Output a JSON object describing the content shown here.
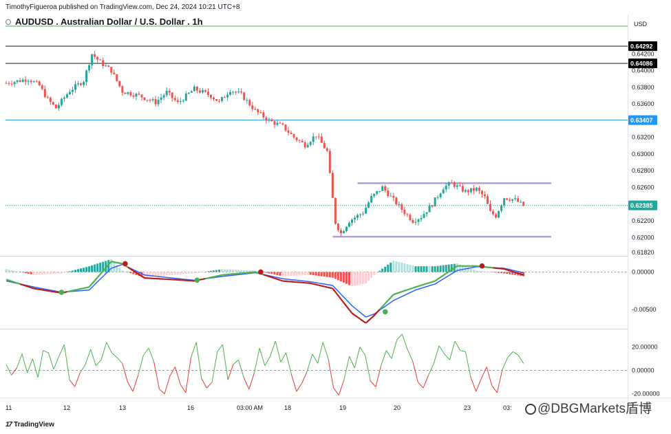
{
  "header": {
    "publisher_line": "TimothyFigueroa published on TradingView.com, Dec 24, 2024 10:21 UTC+8",
    "symbol_title": "AUDUSD . Australian Dollar / U.S. Dollar . 1h",
    "currency": "USD"
  },
  "footer": {
    "brand": "TradingView",
    "watermark": "@DBGMarkets盾博"
  },
  "colors": {
    "up": "#26a69a",
    "down": "#ef5350",
    "level_line": "#131722",
    "support_line": "#2196f3",
    "range_line": "#b39ddb",
    "top_line": "#4caf50",
    "macd_signal": "#2962ff",
    "macd_bull": "#4caf50",
    "macd_bear": "#b71c1c",
    "osc_green": "#4caf50",
    "osc_red": "#e53935"
  },
  "chart_data": [
    {
      "type": "candlestick",
      "pane": "price",
      "ylim": [
        0.6178,
        0.6445
      ],
      "y_ticks": [
        "0.64200",
        "0.64000",
        "0.63800",
        "0.63600",
        "0.63200",
        "0.63000",
        "0.62800",
        "0.62600",
        "0.62200",
        "0.62000",
        "0.61820"
      ],
      "x_ticks": [
        "11",
        "12",
        "13",
        "16",
        "03:00 AM",
        "18",
        "19",
        "20",
        "23",
        "03:"
      ],
      "price_labels": [
        {
          "value": 0.64292,
          "text": "0.64292",
          "style": "dark"
        },
        {
          "value": 0.64086,
          "text": "0.64086",
          "style": "dark"
        },
        {
          "value": 0.63407,
          "text": "0.63407",
          "style": "blue"
        },
        {
          "value": 0.62385,
          "text": "0.62385",
          "style": "green"
        }
      ],
      "horizontal_lines": [
        {
          "value": 0.64292,
          "name": "resistance-high"
        },
        {
          "value": 0.64086,
          "name": "resistance-low"
        },
        {
          "value": 0.63407,
          "name": "support"
        },
        {
          "value": 0.62385,
          "name": "last-price"
        }
      ],
      "range_lines": [
        {
          "value": 0.6265,
          "from_bar": 127,
          "to_bar": 197
        },
        {
          "value": 0.6201,
          "from_bar": 118,
          "to_bar": 197
        }
      ],
      "close_path": [
        [
          0,
          0.6385
        ],
        [
          8,
          0.639
        ],
        [
          12,
          0.6382
        ],
        [
          15,
          0.6365
        ],
        [
          18,
          0.6355
        ],
        [
          23,
          0.6376
        ],
        [
          28,
          0.6388
        ],
        [
          31,
          0.642
        ],
        [
          34,
          0.641
        ],
        [
          38,
          0.64
        ],
        [
          42,
          0.6375
        ],
        [
          48,
          0.637
        ],
        [
          54,
          0.6362
        ],
        [
          58,
          0.6374
        ],
        [
          62,
          0.6361
        ],
        [
          68,
          0.6378
        ],
        [
          74,
          0.637
        ],
        [
          77,
          0.6362
        ],
        [
          81,
          0.6377
        ],
        [
          85,
          0.6371
        ],
        [
          90,
          0.6352
        ],
        [
          95,
          0.634
        ],
        [
          100,
          0.6333
        ],
        [
          104,
          0.632
        ],
        [
          108,
          0.6311
        ],
        [
          112,
          0.6323
        ],
        [
          116,
          0.6303
        ],
        [
          119,
          0.6218
        ],
        [
          121,
          0.6205
        ],
        [
          124,
          0.622
        ],
        [
          129,
          0.623
        ],
        [
          132,
          0.6248
        ],
        [
          136,
          0.626
        ],
        [
          140,
          0.6245
        ],
        [
          144,
          0.623
        ],
        [
          147,
          0.622
        ],
        [
          150,
          0.6225
        ],
        [
          154,
          0.624
        ],
        [
          158,
          0.626
        ],
        [
          161,
          0.6265
        ],
        [
          166,
          0.6255
        ],
        [
          170,
          0.6258
        ],
        [
          173,
          0.6248
        ],
        [
          175,
          0.623
        ],
        [
          177,
          0.6226
        ],
        [
          180,
          0.6248
        ],
        [
          184,
          0.6245
        ],
        [
          187,
          0.6238
        ]
      ]
    },
    {
      "type": "macd",
      "pane": "macd",
      "ylim": [
        -0.0072,
        0.0016
      ],
      "y_ticks": [
        "0.00000",
        "-0.00500"
      ],
      "macd_path": [
        [
          0,
          -0.001
        ],
        [
          10,
          -0.0022
        ],
        [
          20,
          -0.0028
        ],
        [
          30,
          -0.002
        ],
        [
          38,
          0.0014
        ],
        [
          42,
          0.0011
        ],
        [
          50,
          -0.0008
        ],
        [
          60,
          -0.001
        ],
        [
          68,
          -0.0012
        ],
        [
          78,
          -0.0004
        ],
        [
          90,
          0.0
        ],
        [
          100,
          -0.0012
        ],
        [
          110,
          -0.0015
        ],
        [
          118,
          -0.0022
        ],
        [
          125,
          -0.0055
        ],
        [
          130,
          -0.0068
        ],
        [
          133,
          -0.0058
        ],
        [
          140,
          -0.003
        ],
        [
          148,
          -0.002
        ],
        [
          155,
          -0.0012
        ],
        [
          163,
          0.0008
        ],
        [
          170,
          0.0008
        ],
        [
          180,
          0.0004
        ],
        [
          187,
          -0.0004
        ]
      ],
      "signal_path": [
        [
          0,
          -0.0012
        ],
        [
          10,
          -0.002
        ],
        [
          20,
          -0.0027
        ],
        [
          30,
          -0.0024
        ],
        [
          38,
          0.0005
        ],
        [
          42,
          0.001
        ],
        [
          50,
          -0.0004
        ],
        [
          60,
          -0.0008
        ],
        [
          68,
          -0.0011
        ],
        [
          78,
          -0.0006
        ],
        [
          90,
          -0.0001
        ],
        [
          100,
          -0.0009
        ],
        [
          110,
          -0.0013
        ],
        [
          118,
          -0.0018
        ],
        [
          125,
          -0.0045
        ],
        [
          130,
          -0.006
        ],
        [
          133,
          -0.0056
        ],
        [
          140,
          -0.0038
        ],
        [
          148,
          -0.0024
        ],
        [
          155,
          -0.0016
        ],
        [
          163,
          0.0002
        ],
        [
          170,
          0.0007
        ],
        [
          180,
          0.0005
        ],
        [
          187,
          -0.0001
        ]
      ],
      "cross_points": [
        {
          "bar": 20,
          "value": -0.0027,
          "kind": "bull"
        },
        {
          "bar": 43,
          "value": 0.0011,
          "kind": "bear"
        },
        {
          "bar": 69,
          "value": -0.0011,
          "kind": "bull"
        },
        {
          "bar": 92,
          "value": 0.0,
          "kind": "bear"
        },
        {
          "bar": 137,
          "value": -0.0053,
          "kind": "bull"
        },
        {
          "bar": 172,
          "value": 0.0008,
          "kind": "bear"
        }
      ]
    },
    {
      "type": "line",
      "pane": "oscillator",
      "ylim": [
        -22,
        32
      ],
      "y_ticks": [
        "20.00000",
        "0.00000",
        "-20.00000"
      ],
      "zero_line": 0,
      "values": [
        5,
        -4,
        2,
        14,
        -2,
        10,
        -6,
        17,
        15,
        1,
        12,
        22,
        -8,
        -14,
        -2,
        5,
        18,
        4,
        9,
        24,
        15,
        11,
        6,
        -10,
        -18,
        -4,
        13,
        19,
        7,
        -16,
        -20,
        -5,
        3,
        -12,
        -19,
        11,
        24,
        -7,
        -15,
        -10,
        16,
        22,
        -8,
        5,
        9,
        -6,
        -16,
        -2,
        19,
        4,
        12,
        25,
        7,
        15,
        -3,
        -18,
        -11,
        -1,
        14,
        6,
        24,
        10,
        -15,
        -21,
        -8,
        12,
        2,
        20,
        13,
        -9,
        -14,
        4,
        17,
        10,
        26,
        31,
        18,
        8,
        -10,
        -15,
        -4,
        6,
        21,
        14,
        9,
        25,
        17,
        16,
        -6,
        -18,
        -7,
        3,
        -13,
        -19,
        1,
        11,
        16,
        13,
        6
      ]
    }
  ]
}
